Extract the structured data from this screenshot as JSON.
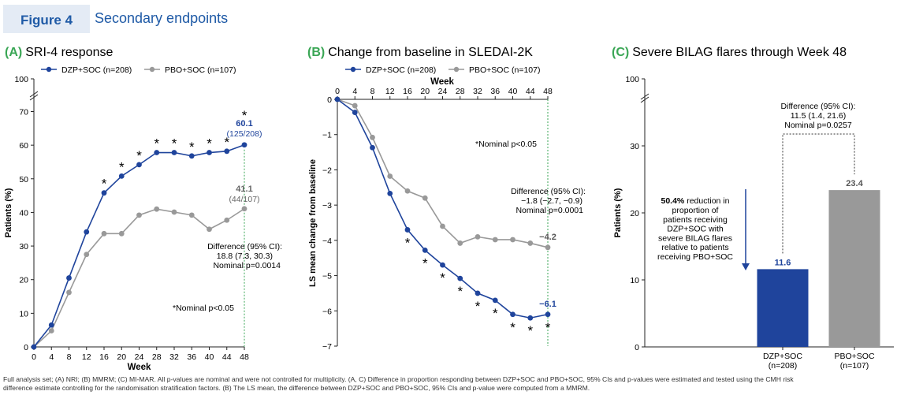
{
  "figure": {
    "badge": "Figure 4",
    "title": "Secondary endpoints",
    "footnote_line1": "Full analysis set; (A) NRI; (B) MMRM; (C) MI-MAR. All p-values are nominal and were not controlled for multiplicity. (A, C) Difference in proportion responding between DZP+SOC and PBO+SOC, 95% CIs and p-values were estimated and tested using the CMH risk",
    "footnote_line2": "difference estimate controlling for the randomisation stratification factors. (B) The LS mean, the difference between DZP+SOC and PBO+SOC, 95% CIs and p-value were computed from a MMRM."
  },
  "colors": {
    "dzp": "#1f449c",
    "pbo": "#999999",
    "accent_title": "#1f5aa6",
    "panel_letter": "#3aa655",
    "badge_bg": "#e4ebf5",
    "week48_line": "#3aa655"
  },
  "chart_data": [
    {
      "type": "line",
      "panel_letter": "(A)",
      "title": "SRI-4 response",
      "xlabel": "Week",
      "ylabel": "Patients (%)",
      "x": [
        0,
        4,
        8,
        12,
        16,
        20,
        24,
        28,
        32,
        36,
        40,
        44,
        48
      ],
      "xticks": [
        "0",
        "4",
        "8",
        "12",
        "16",
        "20",
        "24",
        "28",
        "32",
        "36",
        "40",
        "44",
        "48"
      ],
      "yticks": [
        "0",
        "10",
        "20",
        "30",
        "40",
        "50",
        "60",
        "70",
        "100"
      ],
      "ylim": [
        0,
        70
      ],
      "y_break_top": "100",
      "series": [
        {
          "name": "DZP+SOC (n=208)",
          "values": [
            0,
            6.5,
            20.5,
            34.2,
            45.8,
            50.8,
            54.2,
            57.8,
            57.8,
            56.8,
            57.8,
            58.2,
            60.1
          ]
        },
        {
          "name": "PBO+SOC (n=107)",
          "values": [
            0,
            4.8,
            16.2,
            27.5,
            33.7,
            33.7,
            39.2,
            41.0,
            40.1,
            39.2,
            35.0,
            37.7,
            41.1
          ]
        }
      ],
      "significance_marker": "*",
      "significant_weeks": [
        16,
        20,
        24,
        28,
        32,
        36,
        40,
        44,
        48
      ],
      "end_label_dzp_value": "60.1",
      "end_label_dzp_n": "(125/208)",
      "end_label_pbo_value": "41.1",
      "end_label_pbo_n": "(44/107)",
      "difference_line1": "Difference (95% CI):",
      "difference_line2": "18.8 (7.3, 30.3)",
      "difference_line3": "Nominal p=0.0014",
      "note": "*Nominal p<0.05"
    },
    {
      "type": "line",
      "panel_letter": "(B)",
      "title": "Change from baseline in SLEDAI-2K",
      "xlabel": "Week",
      "ylabel": "LS mean change from baseline",
      "x": [
        0,
        4,
        8,
        12,
        16,
        20,
        24,
        28,
        32,
        36,
        40,
        44,
        48
      ],
      "xticks": [
        "0",
        "4",
        "8",
        "12",
        "16",
        "20",
        "24",
        "28",
        "32",
        "36",
        "40",
        "44",
        "48"
      ],
      "yticks": [
        "0",
        "−1",
        "−2",
        "−3",
        "−4",
        "−5",
        "−6",
        "−7"
      ],
      "ylim": [
        -7,
        0
      ],
      "series": [
        {
          "name": "DZP+SOC (n=208)",
          "values": [
            0,
            -0.37,
            -1.37,
            -2.67,
            -3.7,
            -4.28,
            -4.7,
            -5.08,
            -5.5,
            -5.7,
            -6.1,
            -6.2,
            -6.1
          ]
        },
        {
          "name": "PBO+SOC (n=107)",
          "values": [
            0,
            -0.18,
            -1.08,
            -2.18,
            -2.6,
            -2.8,
            -3.6,
            -4.08,
            -3.9,
            -3.98,
            -3.98,
            -4.08,
            -4.2
          ]
        }
      ],
      "significance_marker": "*",
      "significant_weeks": [
        16,
        20,
        24,
        28,
        32,
        36,
        40,
        44,
        48
      ],
      "end_label_dzp": "−6.1",
      "end_label_pbo": "−4.2",
      "difference_line1": "Difference (95% CI):",
      "difference_line2": "−1.8 (−2.7, −0.9)",
      "difference_line3": "Nominal p=0.0001",
      "note": "*Nominal p<0.05"
    },
    {
      "type": "bar",
      "panel_letter": "(C)",
      "title": "Severe BILAG flares through Week 48",
      "ylabel": "Patients (%)",
      "categories": [
        "DZP+SOC",
        "PBO+SOC"
      ],
      "category_sub": [
        "(n=208)",
        "(n=107)"
      ],
      "values": [
        11.6,
        23.4
      ],
      "value_labels": [
        "11.6",
        "23.4"
      ],
      "yticks": [
        "0",
        "10",
        "20",
        "30",
        "100"
      ],
      "ylim": [
        0,
        30
      ],
      "y_break_top": "100",
      "difference_line1": "Difference (95% CI):",
      "difference_line2": "11.5 (1.4, 21.6)",
      "difference_line3": "Nominal p=0.0257",
      "reduction_bold": "50.4%",
      "reduction_rest1": "reduction in",
      "reduction_lines": [
        "proportion of",
        "patients receiving",
        "DZP+SOC with",
        "severe BILAG flares",
        "relative to patients",
        "receiving PBO+SOC"
      ]
    }
  ]
}
